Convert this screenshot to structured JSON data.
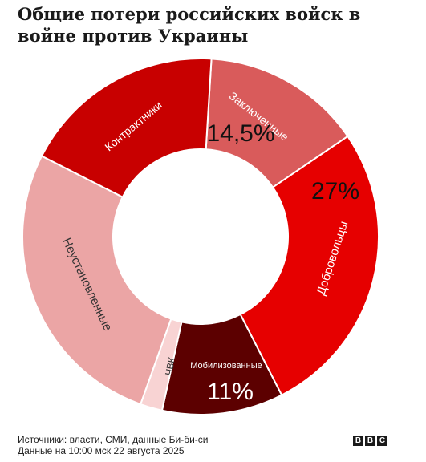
{
  "title": "Общие потери российских войск в войне против Украины",
  "source": {
    "line1": "Источники: власти, СМИ, данные Би-би-си",
    "line2": "Данные на 10:00 мск 22 августа 2025"
  },
  "logo": [
    "B",
    "B",
    "C"
  ],
  "chart_data": {
    "type": "pie",
    "title": "Общие потери российских войск в войне против Украины",
    "slices": [
      {
        "name": "Заключенные",
        "value": 14.5,
        "value_label": "14,5%",
        "color": "#d95b5b",
        "label_color": "#ffffff"
      },
      {
        "name": "Добровольцы",
        "value": 27,
        "value_label": "27%",
        "color": "#e60000",
        "label_color": "#ffffff"
      },
      {
        "name": "Мобилизованные",
        "value": 11,
        "value_label": "11%",
        "color": "#5c0000",
        "label_color": "#ffffff"
      },
      {
        "name": "ЧВК",
        "value": 2,
        "value_label": "",
        "color": "#f8d3d3",
        "label_color": "#333333"
      },
      {
        "name": "Неустановленные",
        "value": 27,
        "value_label": "",
        "color": "#eba5a5",
        "label_color": "#333333"
      },
      {
        "name": "Контрактники",
        "value": 18.5,
        "value_label": "",
        "color": "#c80000",
        "label_color": "#ffffff"
      }
    ]
  }
}
